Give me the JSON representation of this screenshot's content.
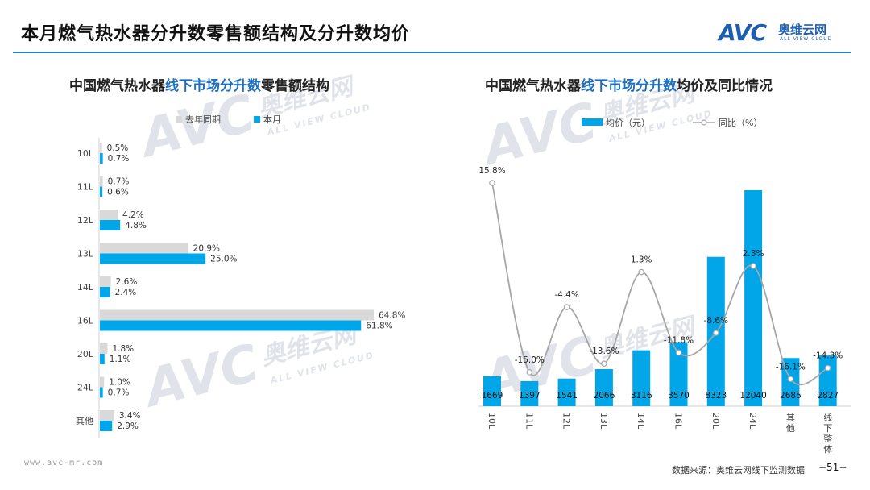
{
  "page": {
    "title": "本月燃气热水器分升数零售额结构及分升数均价",
    "source": "数据来源：奥维云网线下监测数据",
    "page_number": "−51−",
    "url": "www.avc-mr.com"
  },
  "logo": {
    "mark": "AVC",
    "brand": "奥维云网",
    "brand_en": "ALL VIEW CLOUD"
  },
  "watermark": {
    "mark": "AVC",
    "brand": "奥维云网",
    "brand_en": "ALL VIEW CLOUD"
  },
  "colors": {
    "this_month": "#00a6e8",
    "last_year": "#d9d9d9",
    "line": "#a6a6a6",
    "accent": "#1d6fc0"
  },
  "left_chart": {
    "title_parts": [
      "中国燃气热水器",
      "线下市场分升数",
      "零售额结构"
    ]
  },
  "right_chart": {
    "title_parts": [
      "中国燃气热水器",
      "线下市场分升数",
      "均价及同比情况"
    ]
  },
  "chart_data": [
    {
      "type": "bar",
      "orientation": "horizontal",
      "categories": [
        "10L",
        "11L",
        "12L",
        "13L",
        "14L",
        "16L",
        "20L",
        "24L",
        "其他"
      ],
      "series": [
        {
          "name": "去年同期",
          "values": [
            0.5,
            0.7,
            4.2,
            20.9,
            2.6,
            64.8,
            1.8,
            1.0,
            3.4
          ],
          "labels": [
            "0.5%",
            "0.7%",
            "4.2%",
            "20.9%",
            "2.6%",
            "64.8%",
            "1.8%",
            "1.0%",
            "3.4%"
          ]
        },
        {
          "name": "本月",
          "values": [
            0.7,
            0.6,
            4.8,
            25.0,
            2.4,
            61.8,
            1.1,
            0.7,
            2.9
          ],
          "labels": [
            "0.7%",
            "0.6%",
            "4.8%",
            "25.0%",
            "2.4%",
            "61.8%",
            "1.1%",
            "0.7%",
            "2.9%"
          ]
        }
      ],
      "legend": "top"
    },
    {
      "type": "bar",
      "categories": [
        "10L",
        "11L",
        "12L",
        "13L",
        "14L",
        "16L",
        "20L",
        "24L",
        "其他",
        "线下整体"
      ],
      "series": [
        {
          "name": "均价（元）",
          "type": "bar",
          "values": [
            1669,
            1397,
            1541,
            2066,
            3116,
            3570,
            8323,
            12040,
            2685,
            2827
          ],
          "labels": [
            "1669",
            "1397",
            "1541",
            "2066",
            "3116",
            "3570",
            "8323",
            "12040",
            "2685",
            "2827"
          ]
        },
        {
          "name": "同比（%）",
          "type": "line",
          "values": [
            15.8,
            -15.0,
            -4.4,
            -13.6,
            1.3,
            -11.8,
            -8.6,
            2.3,
            -16.1,
            -14.3
          ],
          "labels": [
            "15.8%",
            "-15.0%",
            "-4.4%",
            "-13.6%",
            "1.3%",
            "-11.8%",
            "-8.6%",
            "2.3%",
            "-16.1%",
            "-14.3%"
          ]
        }
      ],
      "legend": "top"
    }
  ]
}
